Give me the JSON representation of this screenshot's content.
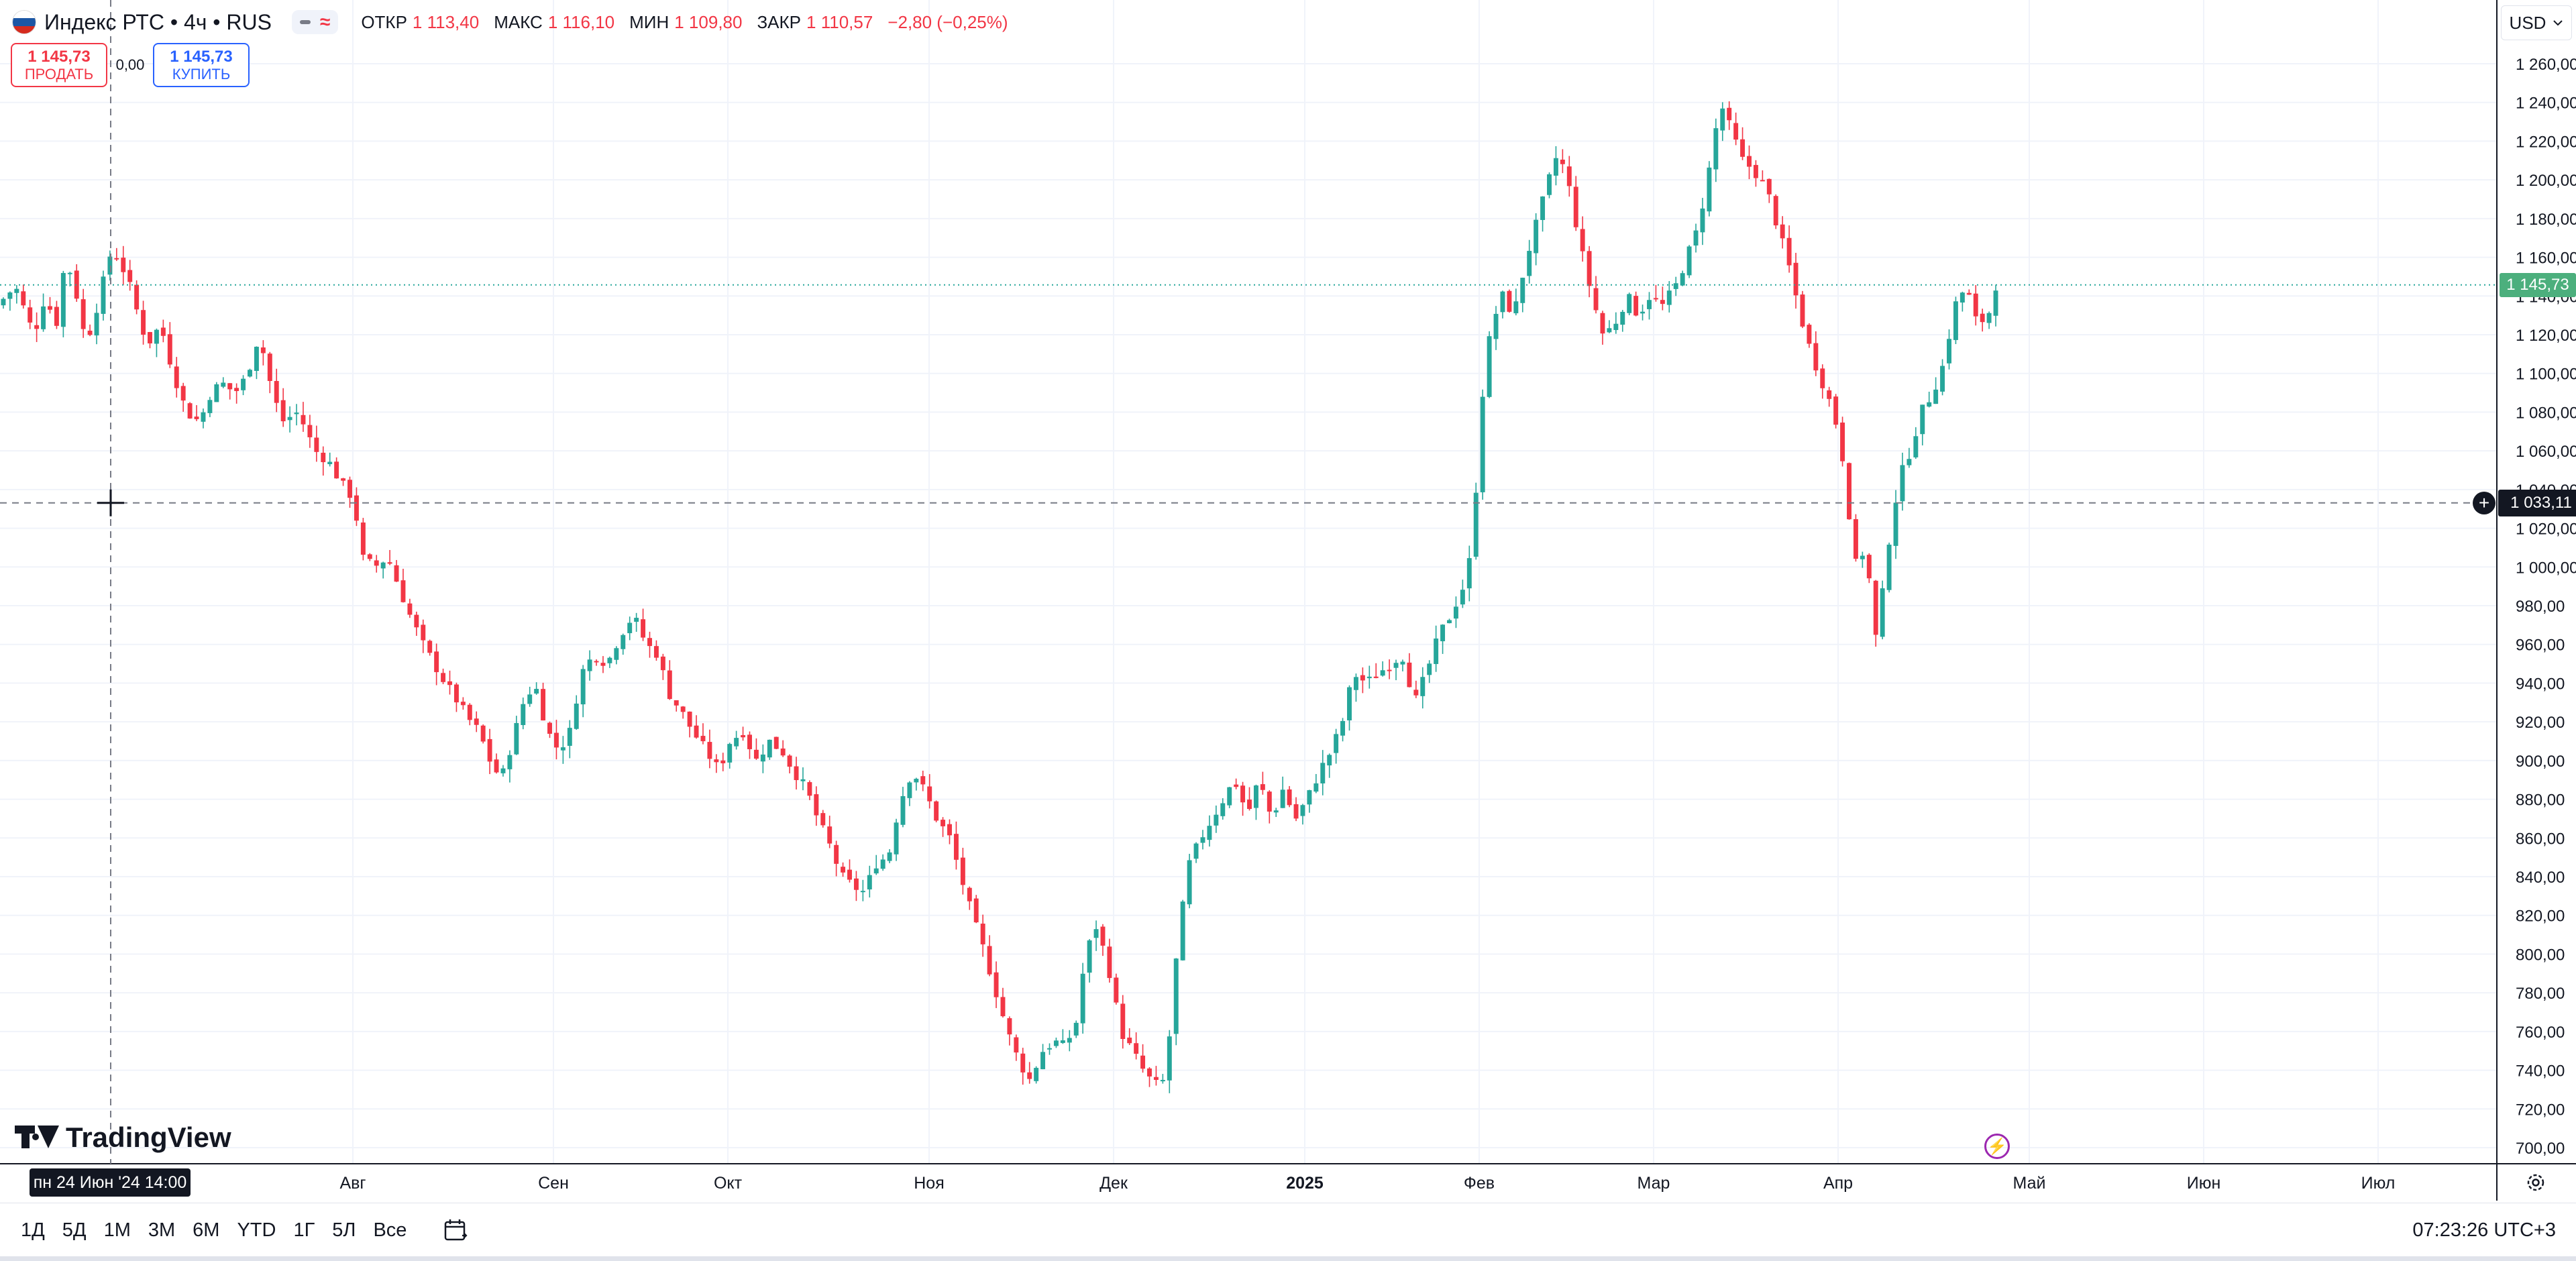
{
  "legend": {
    "flag_colors": [
      "#ffffff",
      "#1c57a5",
      "#d52b1e"
    ],
    "symbol": "Индекс РТС",
    "interval": "4ч",
    "exchange": "RUS",
    "ohlc": [
      {
        "key": "ОТКР",
        "value": "1 113,40"
      },
      {
        "key": "МАКС",
        "value": "1 116,10"
      },
      {
        "key": "МИН",
        "value": "1 109,80"
      },
      {
        "key": "ЗАКР",
        "value": "1 110,57"
      }
    ],
    "change": "−2,80 (−0,25%)"
  },
  "trade": {
    "sell_price": "1 145,73",
    "sell_label": "ПРОДАТЬ",
    "spread": "0,00",
    "buy_price": "1 145,73",
    "buy_label": "КУПИТЬ"
  },
  "currency": "USD",
  "logo_text": "TradingView",
  "crosshair": {
    "time_label": "пн 24 Июн '24   14:00",
    "price_label": "1 033,11",
    "price_value": 1033.11
  },
  "last_price": {
    "label": "1 145,73",
    "value": 1145.73
  },
  "timeframes": [
    "1Д",
    "5Д",
    "1М",
    "3М",
    "6М",
    "YTD",
    "1Г",
    "5Л",
    "Все"
  ],
  "clock": "07:23:26 UTC+3",
  "colors": {
    "up": "#26a69a",
    "down": "#f23645",
    "grid": "#f0f3fa",
    "text": "#131722"
  },
  "chart_data": {
    "type": "candlestick",
    "ylim": [
      690,
      1275
    ],
    "yticks": [
      "700,00",
      "720,00",
      "740,00",
      "760,00",
      "780,00",
      "800,00",
      "820,00",
      "840,00",
      "860,00",
      "880,00",
      "900,00",
      "920,00",
      "940,00",
      "960,00",
      "980,00",
      "1 000,00",
      "1 020,00",
      "1 040,00",
      "1 060,00",
      "1 080,00",
      "1 100,00",
      "1 120,00",
      "1 140,00",
      "1 160,00",
      "1 180,00",
      "1 200,00",
      "1 220,00",
      "1 240,00",
      "1 260,00"
    ],
    "xticks": [
      {
        "label": "Авг",
        "bold": false
      },
      {
        "label": "Сен",
        "bold": false
      },
      {
        "label": "Окт",
        "bold": false
      },
      {
        "label": "Ноя",
        "bold": false
      },
      {
        "label": "Дек",
        "bold": false
      },
      {
        "label": "2025",
        "bold": true
      },
      {
        "label": "Фев",
        "bold": false
      },
      {
        "label": "Мар",
        "bold": false
      },
      {
        "label": "Апр",
        "bold": false
      },
      {
        "label": "Май",
        "bold": false
      },
      {
        "label": "Июн",
        "bold": false
      },
      {
        "label": "Июл",
        "bold": false
      }
    ],
    "price_path": [
      [
        0,
        1135
      ],
      [
        1,
        1145
      ],
      [
        1.6,
        1130
      ],
      [
        2,
        1120
      ],
      [
        2.6,
        1140
      ],
      [
        3.2,
        1125
      ],
      [
        3.7,
        1160
      ],
      [
        4.2,
        1145
      ],
      [
        4.8,
        1115
      ],
      [
        5.4,
        1135
      ],
      [
        6.2,
        1165
      ],
      [
        7,
        1150
      ],
      [
        7.6,
        1130
      ],
      [
        8.1,
        1115
      ],
      [
        8.8,
        1125
      ],
      [
        9.5,
        1100
      ],
      [
        10.2,
        1080
      ],
      [
        10.9,
        1075
      ],
      [
        11.5,
        1090
      ],
      [
        12.1,
        1095
      ],
      [
        12.8,
        1090
      ],
      [
        13.4,
        1098
      ],
      [
        14.1,
        1120
      ],
      [
        14.7,
        1095
      ],
      [
        15.3,
        1075
      ],
      [
        16.2,
        1080
      ],
      [
        17.1,
        1060
      ],
      [
        17.8,
        1055
      ],
      [
        18.6,
        1042
      ],
      [
        19.2,
        1035
      ],
      [
        19.6,
        1005
      ],
      [
        20.3,
        1000
      ],
      [
        21,
        1005
      ],
      [
        21.6,
        990
      ],
      [
        22.2,
        975
      ],
      [
        22.9,
        960
      ],
      [
        23.5,
        950
      ],
      [
        24.1,
        940
      ],
      [
        24.8,
        930
      ],
      [
        25.3,
        922
      ],
      [
        25.9,
        915
      ],
      [
        26.5,
        900
      ],
      [
        27.1,
        890
      ],
      [
        27.7,
        910
      ],
      [
        28.3,
        930
      ],
      [
        28.9,
        940
      ],
      [
        29.6,
        915
      ],
      [
        30.2,
        905
      ],
      [
        30.8,
        915
      ],
      [
        31.4,
        945
      ],
      [
        32.1,
        955
      ],
      [
        32.8,
        950
      ],
      [
        33.5,
        965
      ],
      [
        34.2,
        975
      ],
      [
        34.9,
        960
      ],
      [
        35.5,
        955
      ],
      [
        36.1,
        935
      ],
      [
        36.8,
        925
      ],
      [
        37.4,
        915
      ],
      [
        38.1,
        905
      ],
      [
        38.8,
        895
      ],
      [
        39.4,
        910
      ],
      [
        40.1,
        915
      ],
      [
        40.8,
        900
      ],
      [
        41.5,
        910
      ],
      [
        42.2,
        905
      ],
      [
        42.8,
        895
      ],
      [
        43.5,
        885
      ],
      [
        44.1,
        870
      ],
      [
        44.8,
        855
      ],
      [
        45.4,
        840
      ],
      [
        46,
        835
      ],
      [
        46.6,
        832
      ],
      [
        47.3,
        848
      ],
      [
        47.9,
        850
      ],
      [
        48.5,
        878
      ],
      [
        49.2,
        895
      ],
      [
        49.8,
        885
      ],
      [
        50.5,
        870
      ],
      [
        51.2,
        860
      ],
      [
        51.8,
        840
      ],
      [
        52.4,
        820
      ],
      [
        53.1,
        800
      ],
      [
        53.7,
        780
      ],
      [
        54.3,
        760
      ],
      [
        54.9,
        745
      ],
      [
        55.5,
        735
      ],
      [
        56.2,
        750
      ],
      [
        56.8,
        755
      ],
      [
        57.4,
        752
      ],
      [
        58,
        765
      ],
      [
        58.5,
        800
      ],
      [
        59.1,
        815
      ],
      [
        59.8,
        790
      ],
      [
        60.4,
        760
      ],
      [
        61,
        750
      ],
      [
        61.6,
        740
      ],
      [
        62.2,
        732
      ],
      [
        62.8,
        735
      ],
      [
        63.4,
        800
      ],
      [
        64,
        845
      ],
      [
        64.7,
        860
      ],
      [
        65.3,
        870
      ],
      [
        65.9,
        880
      ],
      [
        66.5,
        890
      ],
      [
        67.2,
        872
      ],
      [
        67.8,
        890
      ],
      [
        68.5,
        870
      ],
      [
        69.1,
        885
      ],
      [
        69.8,
        870
      ],
      [
        70.4,
        880
      ],
      [
        71.1,
        895
      ],
      [
        71.7,
        905
      ],
      [
        72.3,
        920
      ],
      [
        72.9,
        945
      ],
      [
        73.6,
        940
      ],
      [
        74.2,
        945
      ],
      [
        74.9,
        950
      ],
      [
        75.5,
        955
      ],
      [
        76.2,
        930
      ],
      [
        76.8,
        945
      ],
      [
        77.5,
        965
      ],
      [
        78.1,
        975
      ],
      [
        78.8,
        990
      ],
      [
        79.3,
        1010
      ],
      [
        79.7,
        1080
      ],
      [
        80.3,
        1125
      ],
      [
        80.9,
        1140
      ],
      [
        81.5,
        1130
      ],
      [
        82.2,
        1160
      ],
      [
        82.8,
        1180
      ],
      [
        83.4,
        1200
      ],
      [
        83.9,
        1215
      ],
      [
        84.5,
        1195
      ],
      [
        85.1,
        1165
      ],
      [
        85.7,
        1140
      ],
      [
        86.3,
        1120
      ],
      [
        86.9,
        1125
      ],
      [
        87.6,
        1140
      ],
      [
        88.2,
        1130
      ],
      [
        88.8,
        1140
      ],
      [
        89.5,
        1135
      ],
      [
        90.2,
        1145
      ],
      [
        90.8,
        1160
      ],
      [
        91.4,
        1175
      ],
      [
        92,
        1205
      ],
      [
        92.6,
        1240
      ],
      [
        93.2,
        1225
      ],
      [
        93.8,
        1210
      ],
      [
        94.4,
        1205
      ],
      [
        95.1,
        1195
      ],
      [
        95.7,
        1175
      ],
      [
        96.3,
        1155
      ],
      [
        96.9,
        1130
      ],
      [
        97.5,
        1110
      ],
      [
        98.1,
        1095
      ],
      [
        98.7,
        1080
      ],
      [
        99.3,
        1050
      ],
      [
        99.8,
        1000
      ],
      [
        100.4,
        1010
      ],
      [
        101,
        960
      ],
      [
        101.6,
        1010
      ],
      [
        102.2,
        1045
      ],
      [
        102.8,
        1060
      ],
      [
        103.4,
        1080
      ],
      [
        104,
        1090
      ],
      [
        104.6,
        1105
      ],
      [
        105.2,
        1135
      ],
      [
        105.8,
        1145
      ],
      [
        106.4,
        1125
      ],
      [
        107,
        1130
      ],
      [
        107.4,
        1145.73
      ]
    ]
  }
}
